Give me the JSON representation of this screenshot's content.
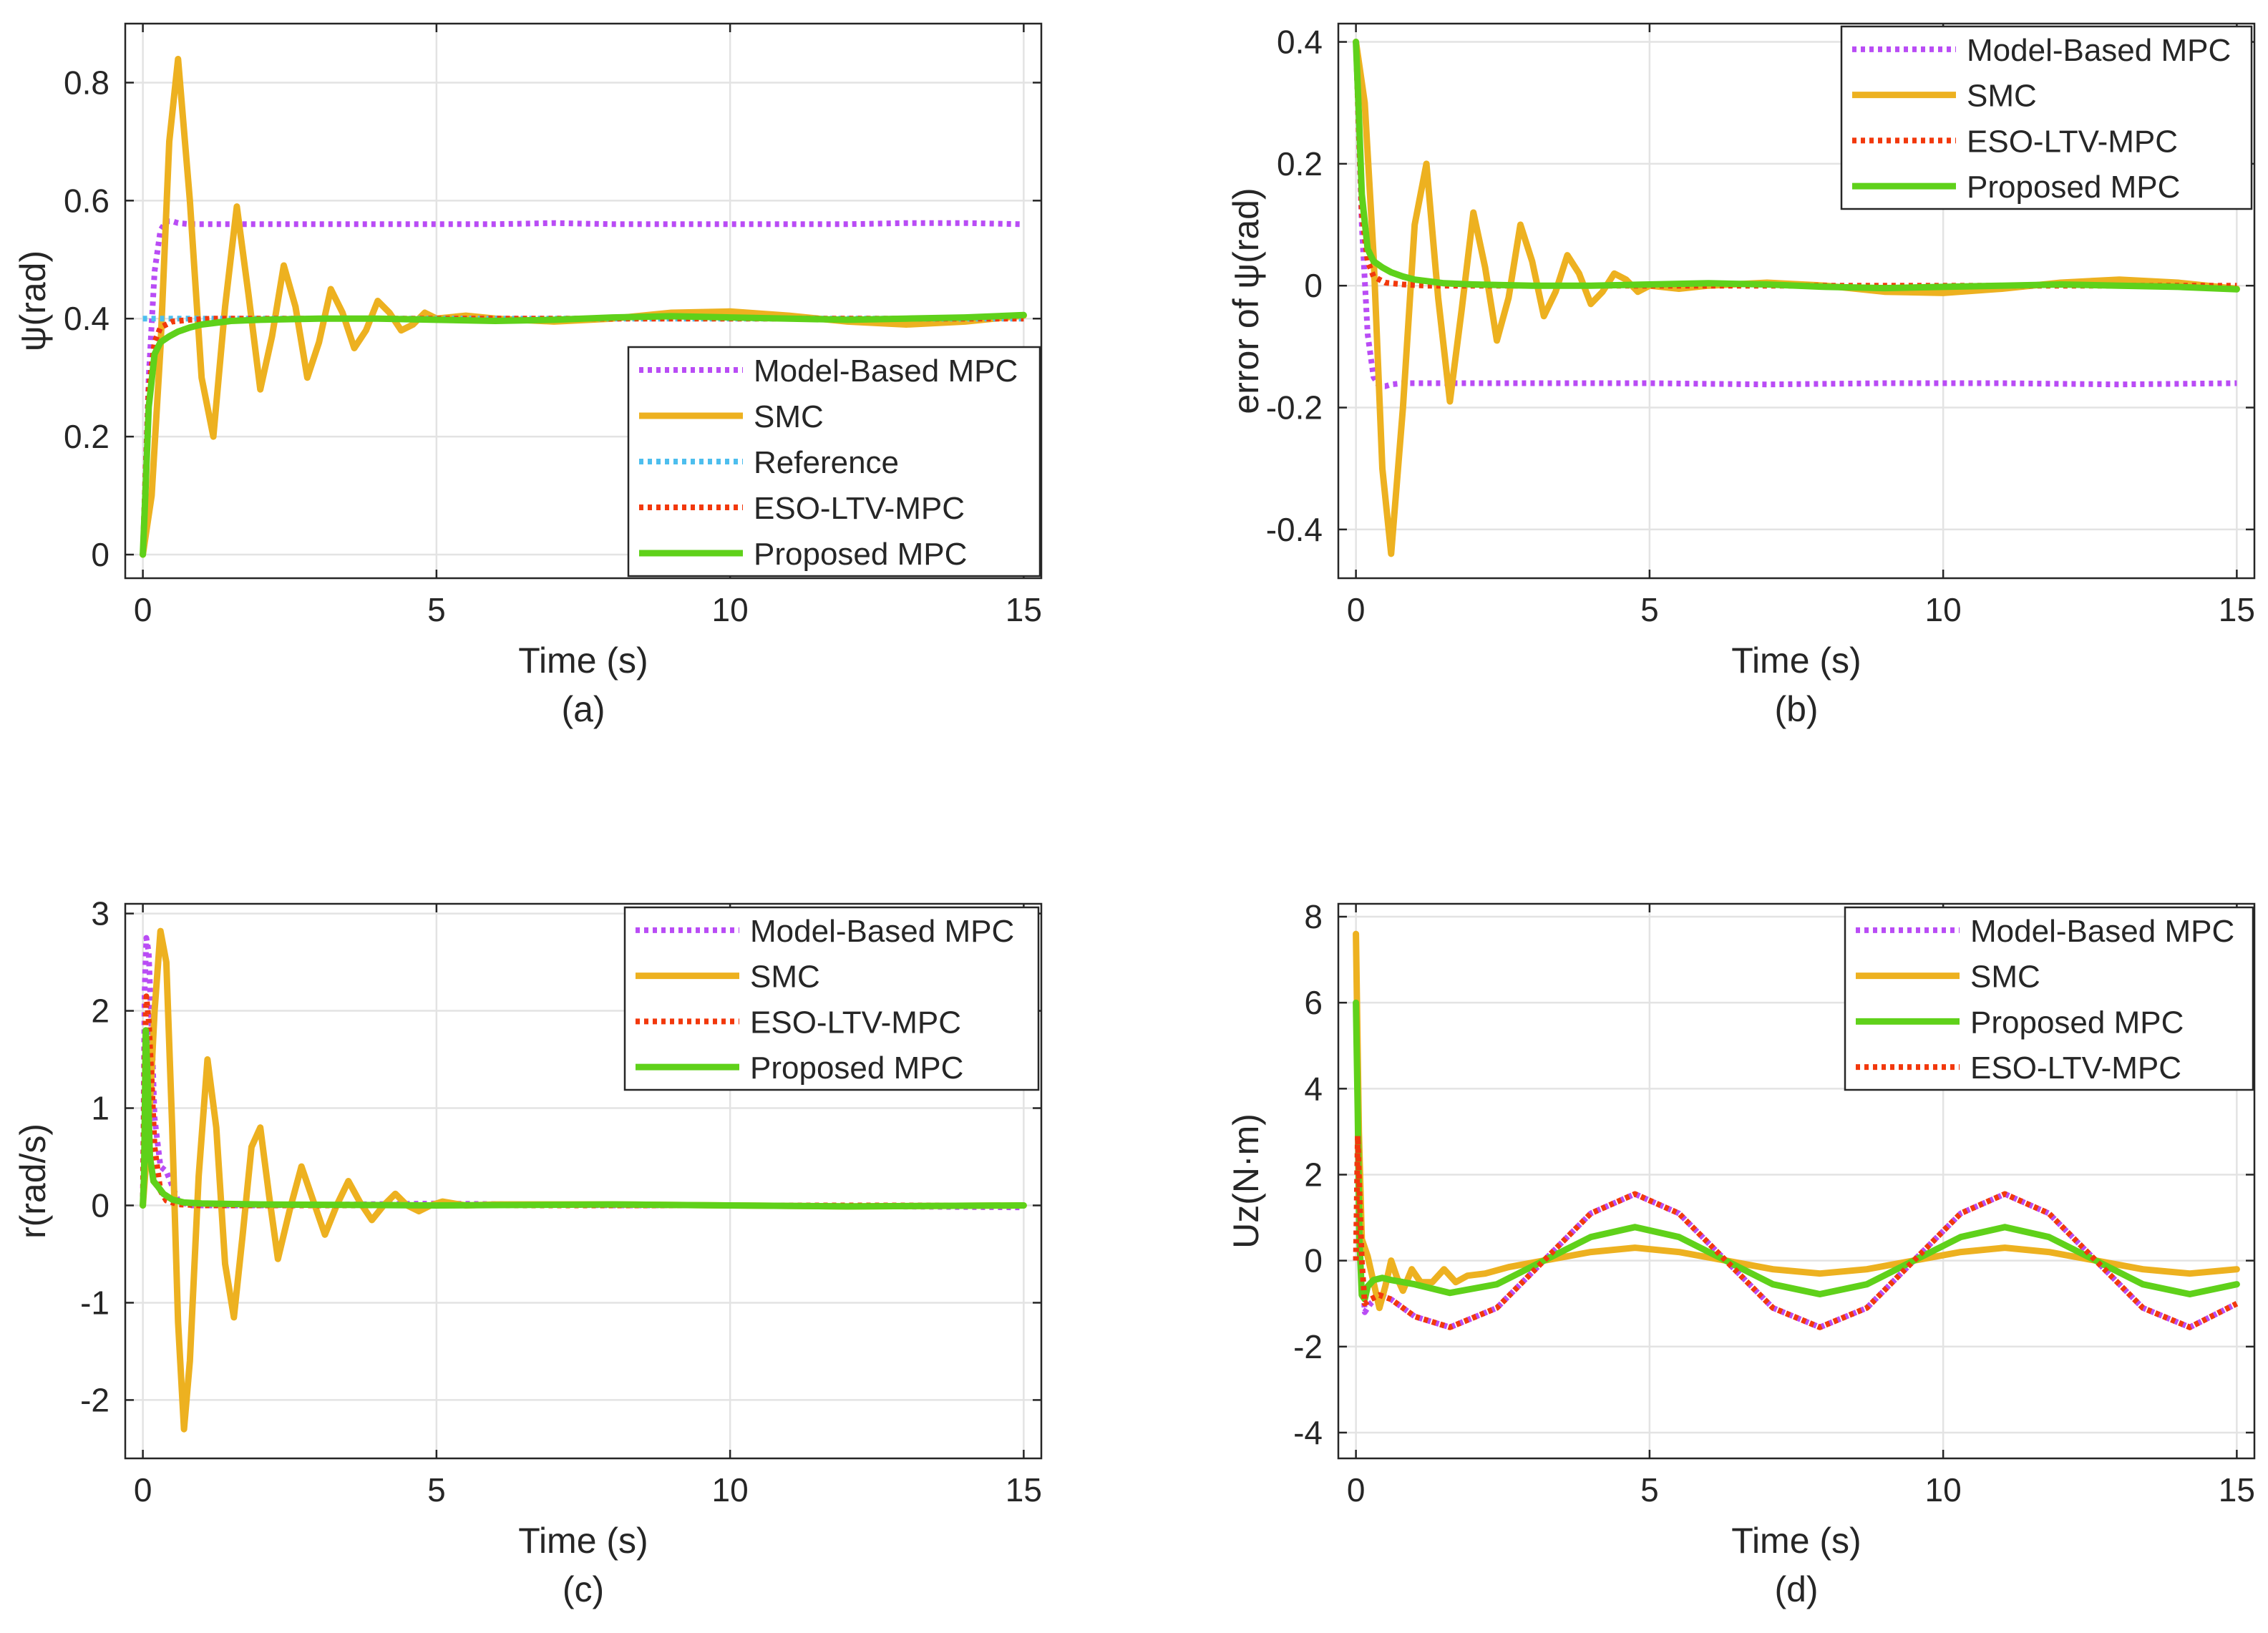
{
  "colors": {
    "model_based_mpc": "#b94cf5",
    "smc": "#edb120",
    "reference": "#4dbeee",
    "eso_ltv_mpc": "#f2380c",
    "proposed_mpc": "#5fd11a",
    "grid": "#e3e3e3",
    "axis": "#262626"
  },
  "chart_data": [
    {
      "id": "a",
      "type": "line",
      "caption": "(a)",
      "xlabel": "Time (s)",
      "ylabel": "ψ(rad)",
      "xlim": [
        -0.3,
        15.3
      ],
      "ylim": [
        -0.04,
        0.9
      ],
      "xticks": [
        0,
        5,
        10,
        15
      ],
      "yticks": [
        0,
        0.2,
        0.4,
        0.6,
        0.8
      ],
      "ytick_labels": [
        "0",
        "0.2",
        "0.4",
        "0.6",
        "0.8"
      ],
      "grid": true,
      "legend_position": "bottom-right",
      "series": [
        {
          "name": "Model-Based MPC",
          "style": "dotted",
          "color_key": "model_based_mpc",
          "x": [
            0,
            0.05,
            0.1,
            0.2,
            0.3,
            0.4,
            0.5,
            0.6,
            0.8,
            1,
            2,
            3,
            4,
            5,
            6,
            7,
            8,
            9,
            10,
            11,
            12,
            13,
            14,
            15
          ],
          "y": [
            0,
            0.15,
            0.3,
            0.48,
            0.55,
            0.565,
            0.565,
            0.562,
            0.56,
            0.56,
            0.56,
            0.56,
            0.56,
            0.56,
            0.56,
            0.562,
            0.56,
            0.56,
            0.56,
            0.56,
            0.56,
            0.562,
            0.562,
            0.56
          ]
        },
        {
          "name": "SMC",
          "style": "solid",
          "color_key": "smc",
          "x": [
            0,
            0.15,
            0.3,
            0.45,
            0.6,
            0.8,
            1.0,
            1.2,
            1.4,
            1.6,
            1.8,
            2.0,
            2.2,
            2.4,
            2.6,
            2.8,
            3.0,
            3.2,
            3.4,
            3.6,
            3.8,
            4.0,
            4.2,
            4.4,
            4.6,
            4.8,
            5.0,
            5.5,
            6,
            7,
            8,
            9,
            10,
            11,
            12,
            13,
            14,
            15
          ],
          "y": [
            0,
            0.1,
            0.35,
            0.7,
            0.84,
            0.6,
            0.3,
            0.2,
            0.42,
            0.59,
            0.44,
            0.28,
            0.37,
            0.49,
            0.42,
            0.3,
            0.36,
            0.45,
            0.41,
            0.35,
            0.38,
            0.43,
            0.41,
            0.38,
            0.39,
            0.41,
            0.4,
            0.405,
            0.4,
            0.395,
            0.4,
            0.41,
            0.412,
            0.405,
            0.395,
            0.39,
            0.395,
            0.405
          ]
        },
        {
          "name": "Reference",
          "style": "dotted",
          "color_key": "reference",
          "x": [
            0,
            15
          ],
          "y": [
            0.4,
            0.4
          ]
        },
        {
          "name": "ESO-LTV-MPC",
          "style": "dotted",
          "color_key": "eso_ltv_mpc",
          "x": [
            0,
            0.05,
            0.1,
            0.2,
            0.3,
            0.5,
            0.8,
            1.2,
            2,
            3,
            5,
            7,
            10,
            12,
            15
          ],
          "y": [
            0,
            0.15,
            0.28,
            0.36,
            0.385,
            0.395,
            0.398,
            0.4,
            0.4,
            0.4,
            0.4,
            0.4,
            0.4,
            0.4,
            0.4
          ]
        },
        {
          "name": "Proposed MPC",
          "style": "solid",
          "color_key": "proposed_mpc",
          "x": [
            0,
            0.05,
            0.1,
            0.2,
            0.3,
            0.45,
            0.6,
            0.8,
            1.0,
            1.5,
            2,
            3,
            4,
            5,
            6,
            7,
            8,
            9,
            10,
            11,
            12,
            13,
            14,
            15
          ],
          "y": [
            0,
            0.12,
            0.25,
            0.34,
            0.36,
            0.37,
            0.378,
            0.385,
            0.39,
            0.396,
            0.398,
            0.4,
            0.4,
            0.398,
            0.396,
            0.398,
            0.402,
            0.404,
            0.402,
            0.4,
            0.398,
            0.4,
            0.402,
            0.406
          ]
        }
      ]
    },
    {
      "id": "b",
      "type": "line",
      "caption": "(b)",
      "xlabel": "Time (s)",
      "ylabel": "error of ψ(rad)",
      "xlim": [
        -0.3,
        15.3
      ],
      "ylim": [
        -0.48,
        0.43
      ],
      "xticks": [
        0,
        5,
        10,
        15
      ],
      "yticks": [
        -0.4,
        -0.2,
        0,
        0.2,
        0.4
      ],
      "ytick_labels": [
        "-0.4",
        "-0.2",
        "0",
        "0.2",
        "0.4"
      ],
      "grid": true,
      "legend_position": "top-right",
      "series": [
        {
          "name": "Model-Based MPC",
          "style": "dotted",
          "color_key": "model_based_mpc",
          "x": [
            0,
            0.05,
            0.1,
            0.2,
            0.3,
            0.4,
            0.5,
            0.6,
            0.8,
            1,
            2,
            3,
            5,
            7,
            9,
            11,
            13,
            15
          ],
          "y": [
            0.4,
            0.25,
            0.1,
            -0.08,
            -0.15,
            -0.165,
            -0.165,
            -0.162,
            -0.16,
            -0.16,
            -0.16,
            -0.16,
            -0.16,
            -0.162,
            -0.16,
            -0.16,
            -0.162,
            -0.16
          ]
        },
        {
          "name": "SMC",
          "style": "solid",
          "color_key": "smc",
          "x": [
            0,
            0.15,
            0.3,
            0.45,
            0.6,
            0.8,
            1.0,
            1.2,
            1.4,
            1.6,
            1.8,
            2.0,
            2.2,
            2.4,
            2.6,
            2.8,
            3.0,
            3.2,
            3.4,
            3.6,
            3.8,
            4.0,
            4.2,
            4.4,
            4.6,
            4.8,
            5.0,
            5.5,
            6,
            7,
            8,
            9,
            10,
            11,
            12,
            13,
            14,
            15
          ],
          "y": [
            0.4,
            0.3,
            0.05,
            -0.3,
            -0.44,
            -0.2,
            0.1,
            0.2,
            -0.02,
            -0.19,
            -0.04,
            0.12,
            0.03,
            -0.09,
            -0.02,
            0.1,
            0.04,
            -0.05,
            -0.01,
            0.05,
            0.02,
            -0.03,
            -0.01,
            0.02,
            0.01,
            -0.01,
            0,
            -0.005,
            0,
            0.005,
            0,
            -0.01,
            -0.012,
            -0.005,
            0.005,
            0.01,
            0.005,
            -0.005
          ]
        },
        {
          "name": "ESO-LTV-MPC",
          "style": "dotted",
          "color_key": "eso_ltv_mpc",
          "x": [
            0,
            0.05,
            0.1,
            0.2,
            0.3,
            0.5,
            0.8,
            1.2,
            2,
            3,
            5,
            7,
            10,
            12,
            15
          ],
          "y": [
            0.4,
            0.25,
            0.12,
            0.04,
            0.015,
            0.005,
            0.002,
            0,
            0,
            0,
            0,
            0,
            0,
            0,
            0
          ]
        },
        {
          "name": "Proposed MPC",
          "style": "solid",
          "color_key": "proposed_mpc",
          "x": [
            0,
            0.05,
            0.1,
            0.2,
            0.3,
            0.45,
            0.6,
            0.8,
            1.0,
            1.5,
            2,
            3,
            4,
            5,
            6,
            7,
            8,
            9,
            10,
            11,
            12,
            13,
            14,
            15
          ],
          "y": [
            0.4,
            0.28,
            0.15,
            0.06,
            0.04,
            0.03,
            0.022,
            0.015,
            0.01,
            0.004,
            0.002,
            0,
            0,
            0.002,
            0.004,
            0.002,
            -0.002,
            -0.004,
            -0.002,
            0,
            0.002,
            0,
            -0.002,
            -0.006
          ]
        }
      ]
    },
    {
      "id": "c",
      "type": "line",
      "caption": "(c)",
      "xlabel": "Time (s)",
      "ylabel": "r(rad/s)",
      "xlim": [
        -0.3,
        15.3
      ],
      "ylim": [
        -2.6,
        3.1
      ],
      "xticks": [
        0,
        5,
        10,
        15
      ],
      "yticks": [
        -2,
        -1,
        0,
        1,
        2,
        3
      ],
      "ytick_labels": [
        "-2",
        "-1",
        "0",
        "1",
        "2",
        "3"
      ],
      "grid": true,
      "legend_position": "top-right",
      "series": [
        {
          "name": "Model-Based MPC",
          "style": "dotted",
          "color_key": "model_based_mpc",
          "x": [
            0,
            0.03,
            0.06,
            0.1,
            0.15,
            0.2,
            0.3,
            0.4,
            0.5,
            0.6,
            0.8,
            1,
            2,
            5,
            8,
            10,
            15
          ],
          "y": [
            0,
            2.2,
            2.75,
            2.6,
            1.8,
            0.9,
            0.4,
            0.35,
            0.2,
            0.05,
            0,
            0,
            0,
            0.02,
            0,
            0,
            -0.02
          ]
        },
        {
          "name": "SMC",
          "style": "solid",
          "color_key": "smc",
          "x": [
            0,
            0.1,
            0.2,
            0.3,
            0.4,
            0.5,
            0.6,
            0.7,
            0.8,
            0.95,
            1.1,
            1.25,
            1.4,
            1.55,
            1.7,
            1.85,
            2.0,
            2.15,
            2.3,
            2.5,
            2.7,
            2.9,
            3.1,
            3.3,
            3.5,
            3.7,
            3.9,
            4.1,
            4.3,
            4.5,
            4.7,
            4.9,
            5.1,
            5.5,
            6,
            8,
            10,
            12,
            15
          ],
          "y": [
            0,
            0.8,
            2.0,
            2.82,
            2.5,
            0.8,
            -1.2,
            -2.3,
            -1.6,
            0.3,
            1.5,
            0.8,
            -0.6,
            -1.15,
            -0.3,
            0.6,
            0.8,
            0.1,
            -0.55,
            -0.05,
            0.4,
            0.05,
            -0.3,
            0.0,
            0.25,
            0.03,
            -0.15,
            0.0,
            0.12,
            0.0,
            -0.06,
            0.0,
            0.04,
            0.0,
            0.01,
            0.01,
            0.0,
            -0.01,
            0.0
          ]
        },
        {
          "name": "ESO-LTV-MPC",
          "style": "dotted",
          "color_key": "eso_ltv_mpc",
          "x": [
            0,
            0.03,
            0.06,
            0.1,
            0.15,
            0.2,
            0.3,
            0.4,
            0.6,
            1,
            2,
            5,
            10,
            15
          ],
          "y": [
            0,
            1.5,
            2.15,
            1.9,
            1.3,
            0.6,
            0.15,
            0.05,
            0.01,
            0,
            0,
            0,
            0,
            0
          ]
        },
        {
          "name": "Proposed MPC",
          "style": "solid",
          "color_key": "proposed_mpc",
          "x": [
            0,
            0.02,
            0.05,
            0.08,
            0.12,
            0.18,
            0.25,
            0.35,
            0.5,
            0.7,
            1,
            2,
            5,
            8,
            10,
            12,
            15
          ],
          "y": [
            0,
            0.3,
            1.8,
            1.3,
            0.5,
            0.25,
            0.2,
            0.12,
            0.06,
            0.03,
            0.02,
            0.01,
            0,
            0.01,
            0,
            -0.01,
            0
          ]
        }
      ]
    },
    {
      "id": "d",
      "type": "line",
      "caption": "(d)",
      "xlabel": "Time (s)",
      "ylabel": "Uz(N·m)",
      "xlim": [
        -0.3,
        15.3
      ],
      "ylim": [
        -4.6,
        8.3
      ],
      "xticks": [
        0,
        5,
        10,
        15
      ],
      "yticks": [
        -4,
        -2,
        0,
        2,
        4,
        6,
        8
      ],
      "ytick_labels": [
        "-4",
        "-2",
        "0",
        "2",
        "4",
        "6",
        "8"
      ],
      "grid": true,
      "legend_position": "top-right",
      "series": [
        {
          "name": "Model-Based MPC",
          "style": "dotted",
          "color_key": "model_based_mpc",
          "x": [
            0,
            0.03,
            0.06,
            0.1,
            0.15,
            0.25,
            0.4,
            0.6,
            0.8,
            1.0,
            1.6,
            2.4,
            3.2,
            4.0,
            4.75,
            5.5,
            6.3,
            7.1,
            7.9,
            8.7,
            9.5,
            10.3,
            11.05,
            11.8,
            12.6,
            13.4,
            14.2,
            15
          ],
          "y": [
            0,
            2.5,
            1.5,
            0,
            -1.2,
            -1.0,
            -0.8,
            -0.9,
            -1.1,
            -1.3,
            -1.55,
            -1.1,
            0,
            1.1,
            1.55,
            1.1,
            0,
            -1.1,
            -1.55,
            -1.1,
            0,
            1.1,
            1.55,
            1.1,
            0,
            -1.1,
            -1.55,
            -1.0
          ]
        },
        {
          "name": "SMC",
          "style": "solid",
          "color_key": "smc",
          "x": [
            0,
            0.05,
            0.1,
            0.2,
            0.3,
            0.4,
            0.5,
            0.6,
            0.7,
            0.8,
            0.95,
            1.1,
            1.3,
            1.5,
            1.7,
            1.9,
            2.2,
            2.6,
            3.2,
            4.0,
            4.75,
            5.5,
            6.3,
            7.1,
            7.9,
            8.7,
            9.5,
            10.3,
            11.05,
            11.8,
            12.6,
            13.4,
            14.2,
            15
          ],
          "y": [
            7.6,
            3.0,
            0.5,
            0.1,
            -0.5,
            -1.1,
            -0.6,
            0.0,
            -0.4,
            -0.7,
            -0.2,
            -0.5,
            -0.5,
            -0.2,
            -0.5,
            -0.35,
            -0.3,
            -0.15,
            0,
            0.2,
            0.3,
            0.2,
            0,
            -0.2,
            -0.3,
            -0.2,
            0,
            0.2,
            0.3,
            0.2,
            0,
            -0.2,
            -0.3,
            -0.2
          ]
        },
        {
          "name": "Proposed MPC",
          "style": "solid",
          "color_key": "proposed_mpc",
          "x": [
            0,
            0.03,
            0.06,
            0.1,
            0.15,
            0.2,
            0.3,
            0.45,
            0.6,
            0.8,
            1.0,
            1.6,
            2.4,
            3.2,
            4.0,
            4.75,
            5.5,
            6.3,
            7.1,
            7.9,
            8.7,
            9.5,
            10.3,
            11.05,
            11.8,
            12.6,
            13.4,
            14.2,
            15
          ],
          "y": [
            6.0,
            3.5,
            0.5,
            -0.8,
            -0.9,
            -0.6,
            -0.45,
            -0.4,
            -0.45,
            -0.5,
            -0.55,
            -0.75,
            -0.55,
            0,
            0.55,
            0.78,
            0.55,
            0,
            -0.55,
            -0.78,
            -0.55,
            0,
            0.55,
            0.78,
            0.55,
            0,
            -0.55,
            -0.78,
            -0.55
          ]
        },
        {
          "name": "ESO-LTV-MPC",
          "style": "dotted",
          "color_key": "eso_ltv_mpc",
          "x": [
            0,
            0.03,
            0.06,
            0.1,
            0.15,
            0.25,
            0.4,
            0.6,
            0.8,
            1.0,
            1.6,
            2.4,
            3.2,
            4.0,
            4.75,
            5.5,
            6.3,
            7.1,
            7.9,
            8.7,
            9.5,
            10.3,
            11.05,
            11.8,
            12.6,
            13.4,
            14.2,
            15
          ],
          "y": [
            0,
            2.9,
            1.6,
            0,
            -1.0,
            -0.9,
            -0.8,
            -0.9,
            -1.1,
            -1.3,
            -1.55,
            -1.1,
            0,
            1.1,
            1.55,
            1.1,
            0,
            -1.1,
            -1.55,
            -1.1,
            0,
            1.1,
            1.55,
            1.1,
            0,
            -1.1,
            -1.55,
            -1.0
          ]
        }
      ]
    }
  ]
}
